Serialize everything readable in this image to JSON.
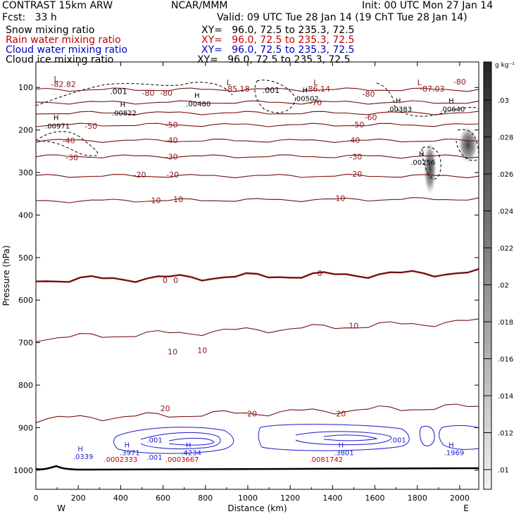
{
  "header": {
    "model": "CONTRAST 15km ARW",
    "org": "NCAR/MMM",
    "init": "Init: 00 UTC Mon 27 Jan 14",
    "fcst": "Fcst:   33 h",
    "valid": "Valid: 09 UTC Tue 28 Jan 14 (19 ChT Tue 28 Jan 14)"
  },
  "legend": [
    {
      "label": "Snow mixing ratio",
      "xy": "XY=   96.0, 72.5 to 235.3, 72.5",
      "color": "#000000"
    },
    {
      "label": "Rain water mixing ratio",
      "xy": "XY=   96.0, 72.5 to 235.3, 72.5",
      "color": "#c00000"
    },
    {
      "label": "Cloud water mixing ratio",
      "xy": "XY=   96.0, 72.5 to 235.3, 72.5",
      "color": "#0000c0"
    },
    {
      "label": "Cloud ice mixing ratio",
      "xy": "XY=   96.0, 72.5 to 235.3, 72.5",
      "color": "#000000"
    }
  ],
  "chart_data": {
    "type": "contour",
    "xlabel": "Distance (km)",
    "ylabel": "Pressure (hPa)",
    "xlim": [
      0,
      2090
    ],
    "ylim": [
      1045,
      40
    ],
    "x_ticks": [
      0,
      200,
      400,
      600,
      800,
      1000,
      1200,
      1400,
      1600,
      1800,
      2000
    ],
    "y_ticks": [
      100,
      200,
      300,
      400,
      500,
      600,
      700,
      800,
      900,
      1000
    ],
    "x_end_labels": {
      "left": "W",
      "right": "E"
    },
    "temperature_contours": [
      {
        "value": -80,
        "p": [
          105,
          105
        ]
      },
      {
        "value": -70,
        "p": [
          135,
          135
        ]
      },
      {
        "value": -60,
        "p": [
          160,
          160
        ]
      },
      {
        "value": -50,
        "p": [
          188,
          188
        ]
      },
      {
        "value": -40,
        "p": [
          225,
          225
        ]
      },
      {
        "value": -30,
        "p": [
          262,
          262
        ]
      },
      {
        "value": -20,
        "p": [
          308,
          308
        ]
      },
      {
        "value": -10,
        "p": [
          367,
          362
        ]
      },
      {
        "value": 0,
        "p": [
          553,
          535
        ]
      },
      {
        "value": 10,
        "p": [
          690,
          650
        ]
      },
      {
        "value": 20,
        "p": [
          880,
          850
        ]
      }
    ],
    "contour_labels": [
      {
        "text": "-82.82",
        "x": 130,
        "p": 92
      },
      {
        "text": "-85.18",
        "x": 950,
        "p": 103
      },
      {
        "text": "-86.14",
        "x": 1330,
        "p": 103
      },
      {
        "text": "-87.03",
        "x": 1870,
        "p": 103
      },
      {
        "text": "-80",
        "x": 2000,
        "p": 86
      },
      {
        "text": "-80",
        "x": 530,
        "p": 113
      },
      {
        "text": "-80",
        "x": 615,
        "p": 113
      },
      {
        "text": "-80",
        "x": 1570,
        "p": 115
      },
      {
        "text": "-70",
        "x": 1320,
        "p": 135
      },
      {
        "text": "-60",
        "x": 1580,
        "p": 170
      },
      {
        "text": "-50",
        "x": 260,
        "p": 191
      },
      {
        "text": "-50",
        "x": 640,
        "p": 187
      },
      {
        "text": "-50",
        "x": 1520,
        "p": 187
      },
      {
        "text": "-40",
        "x": 155,
        "p": 225
      },
      {
        "text": "-40",
        "x": 640,
        "p": 224
      },
      {
        "text": "-40",
        "x": 1500,
        "p": 224
      },
      {
        "text": "-30",
        "x": 170,
        "p": 264
      },
      {
        "text": "-30",
        "x": 640,
        "p": 263
      },
      {
        "text": "-30",
        "x": 1510,
        "p": 263
      },
      {
        "text": "-20",
        "x": 490,
        "p": 305
      },
      {
        "text": "-20",
        "x": 645,
        "p": 305
      },
      {
        "text": "-20",
        "x": 1510,
        "p": 303
      },
      {
        "text": "-10",
        "x": 560,
        "p": 365
      },
      {
        "text": "-10",
        "x": 665,
        "p": 363
      },
      {
        "text": "-10",
        "x": 1430,
        "p": 360
      },
      {
        "text": "0",
        "x": 610,
        "p": 553
      },
      {
        "text": "0",
        "x": 660,
        "p": 553
      },
      {
        "text": "0",
        "x": 1340,
        "p": 537
      },
      {
        "text": "10",
        "x": 645,
        "p": 721
      },
      {
        "text": "10",
        "x": 785,
        "p": 718
      },
      {
        "text": "10",
        "x": 1500,
        "p": 660
      },
      {
        "text": "20",
        "x": 610,
        "p": 855
      },
      {
        "text": "20",
        "x": 1020,
        "p": 867
      },
      {
        "text": "20",
        "x": 1440,
        "p": 867
      }
    ],
    "snow_labels": [
      {
        "text": ".001",
        "x": 390,
        "p": 109
      },
      {
        "text": ".001",
        "x": 1110,
        "p": 106
      }
    ],
    "ice_extrema": [
      {
        "mark": "H",
        "value": ".00971",
        "x": 95,
        "p": 180
      },
      {
        "mark": "H",
        "value": ".00822",
        "x": 410,
        "p": 149
      },
      {
        "mark": "H",
        "value": ".00480",
        "x": 760,
        "p": 128
      },
      {
        "mark": "H",
        "value": ".00502",
        "x": 1270,
        "p": 115
      },
      {
        "mark": "H",
        "value": ".00383",
        "x": 1710,
        "p": 140
      },
      {
        "mark": "H",
        "value": ".00640",
        "x": 1960,
        "p": 140
      },
      {
        "mark": "H",
        "value": ".00256",
        "x": 1820,
        "p": 265
      }
    ],
    "lows": [
      {
        "mark": "L",
        "x": 95,
        "p": 80
      },
      {
        "mark": "L",
        "x": 910,
        "p": 88
      },
      {
        "mark": "L",
        "x": 1320,
        "p": 88
      },
      {
        "mark": "L",
        "x": 1810,
        "p": 88
      }
    ],
    "cloud_water": [
      {
        "mark": "H",
        "value": ".0339",
        "x": 210,
        "p": 962
      },
      {
        "mark": "H",
        "value": ".3971",
        "x": 430,
        "p": 953
      },
      {
        "mark": "H",
        "value": ".4234",
        "x": 720,
        "p": 953
      },
      {
        "mark": "H",
        "value": ".3801",
        "x": 1440,
        "p": 953
      },
      {
        "mark": "H",
        "value": ".1969",
        "x": 1960,
        "p": 953
      }
    ],
    "cloud_water_labels": [
      {
        "text": ".001",
        "x": 560,
        "p": 928
      },
      {
        "text": ".001",
        "x": 560,
        "p": 969
      },
      {
        "text": ".001",
        "x": 1710,
        "p": 928
      }
    ],
    "rain_water": [
      {
        "value": ".0002333",
        "x": 400,
        "p": 974
      },
      {
        "value": ".0003667",
        "x": 690,
        "p": 974
      },
      {
        "value": ".0081742",
        "x": 1370,
        "p": 974
      }
    ],
    "colorbar": {
      "unit": "g kg⁻¹",
      "ticks": [
        ".01",
        ".012",
        ".014",
        ".016",
        ".018",
        ".02",
        ".022",
        ".024",
        ".026",
        ".028",
        ".03"
      ]
    }
  }
}
